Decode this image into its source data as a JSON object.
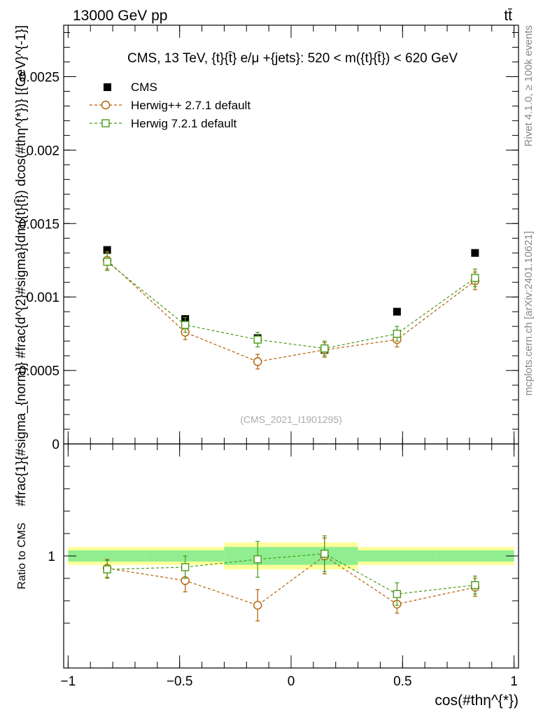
{
  "header": {
    "energy_label": "13000 GeV pp",
    "process_label": "tt̄"
  },
  "side_notes": {
    "rivet_version": "Rivet 4.1.0, ≥ 100k events",
    "source": "mcplots.cern.ch [arXiv:2401.10621]"
  },
  "colors": {
    "cms": "#000000",
    "herwig_pp": "#b35f00",
    "herwig_7": "#4a9a1a",
    "band_inner": "#90ee90",
    "band_outer": "#ffff99"
  },
  "chart_data": [
    {
      "type": "scatter",
      "title": "CMS, 13 TeV, {t}{t̄} e/μ +{jets}: 520 < m({t}{t̄}) < 620 GeV",
      "watermark": "(CMS_2021_I1901295)",
      "ylabel": "#frac{1}{#sigma_{norm}} #frac{d^{2}#sigma}{dm({t}{t̄}) dcos(#thη^{*})} [{GeV}^{-1}]",
      "ylim": [
        0,
        0.00285
      ],
      "yticks": [
        0,
        0.0005,
        0.001,
        0.0015,
        0.002,
        0.0025
      ],
      "ytick_labels": [
        "0",
        "0.0005",
        "0.001",
        "0.0015",
        "0.002",
        "0.0025"
      ],
      "x": [
        -0.825,
        -0.475,
        -0.15,
        0.15,
        0.475,
        0.825
      ],
      "legend": [
        "CMS",
        "Herwig++ 2.7.1 default",
        "Herwig 7.2.1 default"
      ],
      "series": [
        {
          "name": "CMS",
          "marker": "filled-square",
          "values": [
            0.00132,
            0.00085,
            0.00072,
            0.00064,
            0.0009,
            0.0013
          ]
        },
        {
          "name": "Herwig++ 2.7.1 default",
          "marker": "open-circle",
          "values": [
            0.00125,
            0.00076,
            0.00056,
            0.00064,
            0.00071,
            0.00111
          ],
          "errors": [
            6e-05,
            5e-05,
            5e-05,
            5e-05,
            5e-05,
            6e-05
          ]
        },
        {
          "name": "Herwig 7.2.1 default",
          "marker": "open-square",
          "values": [
            0.00124,
            0.00081,
            0.00071,
            0.00065,
            0.00075,
            0.00113
          ],
          "errors": [
            6e-05,
            5e-05,
            5e-05,
            5e-05,
            5e-05,
            6e-05
          ]
        }
      ]
    },
    {
      "type": "scatter",
      "ylabel": "Ratio to CMS",
      "xlabel": "cos(#thη^{*})",
      "ylim": [
        0.5,
        1.5
      ],
      "ytick_labels": [
        "1"
      ],
      "xlim": [
        -1.02,
        1.02
      ],
      "xticks": [
        -1,
        -0.5,
        0,
        0.5,
        1
      ],
      "xtick_labels": [
        "−1",
        "−0.5",
        "0",
        "0.5",
        "1"
      ],
      "x": [
        -0.825,
        -0.475,
        -0.15,
        0.15,
        0.475,
        0.825
      ],
      "bins": [
        [
          -1,
          -0.65
        ],
        [
          -0.65,
          -0.3
        ],
        [
          -0.3,
          0
        ],
        [
          0,
          0.3
        ],
        [
          0.3,
          0.65
        ],
        [
          0.65,
          1
        ]
      ],
      "cms_band_inner": [
        0.025,
        0.025,
        0.04,
        0.04,
        0.025,
        0.025
      ],
      "cms_band_outer": [
        0.04,
        0.04,
        0.06,
        0.06,
        0.04,
        0.04
      ],
      "series": [
        {
          "name": "Herwig++ 2.7.1 default",
          "values": [
            0.945,
            0.89,
            0.78,
            1.0,
            0.785,
            0.86
          ],
          "errors": [
            0.04,
            0.05,
            0.07,
            0.08,
            0.04,
            0.04
          ]
        },
        {
          "name": "Herwig 7.2.1 default",
          "values": [
            0.94,
            0.95,
            0.985,
            1.01,
            0.83,
            0.87
          ],
          "errors": [
            0.04,
            0.05,
            0.08,
            0.08,
            0.05,
            0.04
          ]
        }
      ]
    }
  ]
}
